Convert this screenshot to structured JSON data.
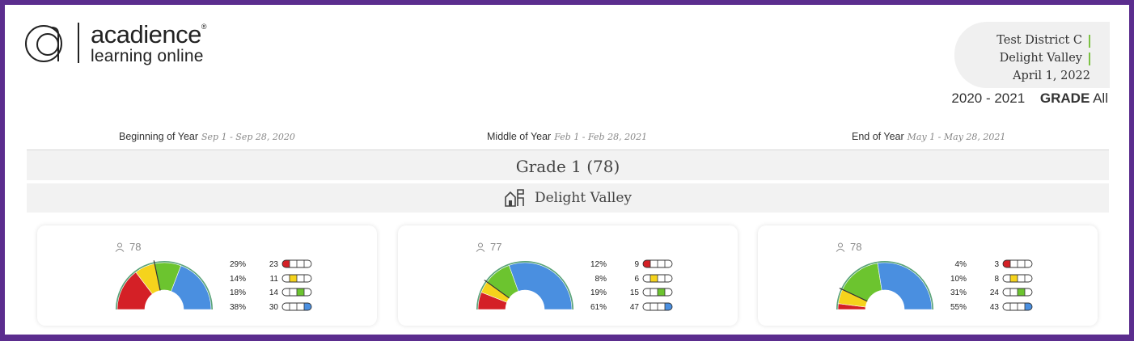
{
  "brand": {
    "line1": "acadience",
    "reg": "®",
    "line2": "learning online"
  },
  "header": {
    "district": "Test District C",
    "school": "Delight Valley",
    "date": "April 1, 2022",
    "school_year": "2020 - 2021",
    "grade_label": "GRADE",
    "grade_value": "All"
  },
  "periods": [
    {
      "label": "Beginning of Year",
      "range": "Sep 1 - Sep 28, 2020"
    },
    {
      "label": "Middle of Year",
      "range": "Feb 1 - Feb 28, 2021"
    },
    {
      "label": "End of Year",
      "range": "May 1 - May 28, 2021"
    }
  ],
  "grade_heading": "Grade 1 (78)",
  "school_heading": "Delight Valley",
  "colors": {
    "well_below": "#d42026",
    "below": "#f5d31c",
    "at": "#6cc42f",
    "above": "#4a8fe0",
    "outer_band": "#5ba47a",
    "purple_frame": "#5b2d8e"
  },
  "cards": [
    {
      "count": "78",
      "rows": [
        {
          "pct": "29%",
          "n": "23",
          "level": 1
        },
        {
          "pct": "14%",
          "n": "11",
          "level": 2
        },
        {
          "pct": "18%",
          "n": "14",
          "level": 3
        },
        {
          "pct": "38%",
          "n": "30",
          "level": 4
        }
      ],
      "shares": [
        0.29,
        0.14,
        0.18,
        0.38
      ]
    },
    {
      "count": "77",
      "rows": [
        {
          "pct": "12%",
          "n": "9",
          "level": 1
        },
        {
          "pct": "8%",
          "n": "6",
          "level": 2
        },
        {
          "pct": "19%",
          "n": "15",
          "level": 3
        },
        {
          "pct": "61%",
          "n": "47",
          "level": 4
        }
      ],
      "shares": [
        0.12,
        0.08,
        0.19,
        0.61
      ]
    },
    {
      "count": "78",
      "rows": [
        {
          "pct": "4%",
          "n": "3",
          "level": 1
        },
        {
          "pct": "10%",
          "n": "8",
          "level": 2
        },
        {
          "pct": "31%",
          "n": "24",
          "level": 3
        },
        {
          "pct": "55%",
          "n": "43",
          "level": 4
        }
      ],
      "shares": [
        0.04,
        0.1,
        0.31,
        0.55
      ]
    }
  ]
}
